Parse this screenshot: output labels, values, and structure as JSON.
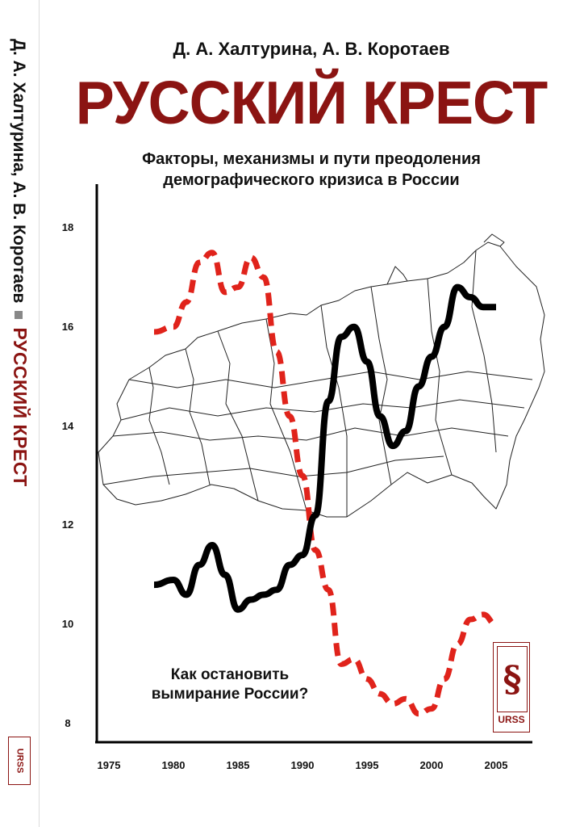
{
  "spine": {
    "authors": "Д. А. Халтурина, А. В. Коротаев",
    "title": "РУССКИЙ КРЕСТ",
    "publisher": "URSS"
  },
  "cover": {
    "authors": "Д. А. Халтурина, А. В. Коротаев",
    "title": "РУССКИЙ КРЕСТ",
    "subtitle_line1": "Факторы, механизмы и пути преодоления",
    "subtitle_line2": "демографического кризиса в России",
    "slogan_line1": "Как остановить",
    "slogan_line2": "вымирание России?",
    "publisher": "URSS"
  },
  "colors": {
    "title_red": "#8b1412",
    "dashed_line": "#e0231b",
    "solid_line": "#000000"
  },
  "chart_data": {
    "type": "line",
    "title": "",
    "xlabel": "",
    "ylabel": "",
    "xlim": [
      1975,
      2008
    ],
    "ylim": [
      7.5,
      19
    ],
    "x_ticks": [
      "1975",
      "1980",
      "1985",
      "1990",
      "1995",
      "2000",
      "2005"
    ],
    "y_ticks": [
      "8",
      "10",
      "12",
      "14",
      "16",
      "18"
    ],
    "series": [
      {
        "style": "dashed-red",
        "x": [
          1978.5,
          1980,
          1981,
          1982,
          1983,
          1984,
          1985,
          1986,
          1987,
          1988,
          1989,
          1990,
          1991,
          1992,
          1993,
          1994,
          1995,
          1996,
          1997,
          1998,
          1999,
          2000,
          2001,
          2002,
          2003,
          2004,
          2005
        ],
        "y": [
          15.9,
          16.0,
          16.5,
          17.3,
          17.5,
          16.7,
          16.8,
          17.4,
          17.0,
          15.5,
          14.2,
          13.0,
          11.5,
          10.7,
          9.2,
          9.3,
          8.9,
          8.6,
          8.4,
          8.5,
          8.2,
          8.3,
          8.9,
          9.6,
          10.1,
          10.2,
          10.0
        ]
      },
      {
        "style": "solid-black",
        "x": [
          1978.5,
          1980,
          1981,
          1982,
          1983,
          1984,
          1985,
          1986,
          1987,
          1988,
          1989,
          1990,
          1991,
          1992,
          1993,
          1994,
          1995,
          1996,
          1997,
          1998,
          1999,
          2000,
          2001,
          2002,
          2003,
          2004,
          2005
        ],
        "y": [
          10.8,
          10.9,
          10.6,
          11.2,
          11.6,
          11.0,
          10.3,
          10.5,
          10.6,
          10.7,
          11.2,
          11.4,
          12.2,
          14.5,
          15.8,
          16.0,
          15.3,
          14.2,
          13.6,
          13.9,
          14.8,
          15.4,
          16.0,
          16.8,
          16.6,
          16.4,
          16.4
        ]
      }
    ]
  }
}
